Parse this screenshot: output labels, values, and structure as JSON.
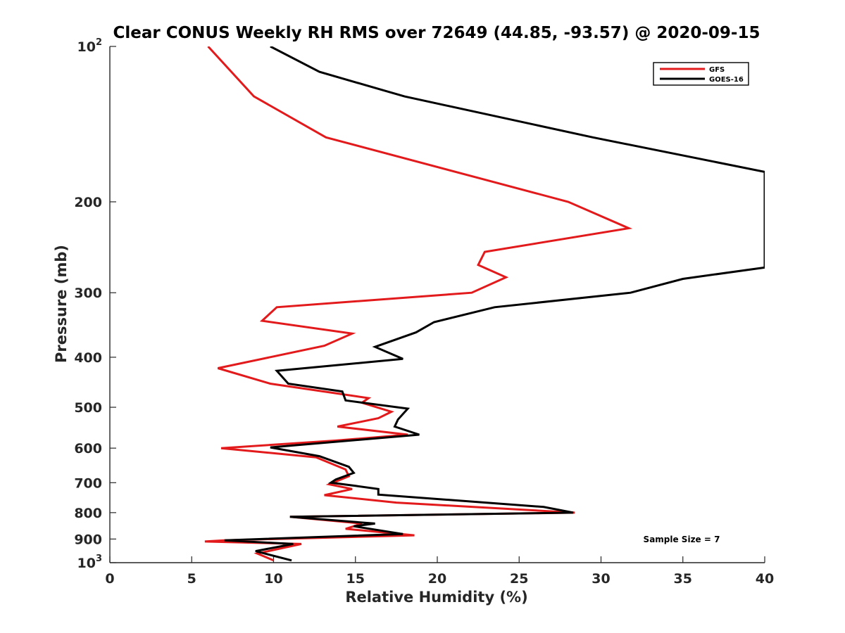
{
  "chart_data": {
    "type": "line",
    "title": "Clear CONUS Weekly RH RMS over 72649 (44.85, -93.57) @ 2020-09-15",
    "xlabel": "Relative Humidity (%)",
    "ylabel": "Pressure (mb)",
    "xlim": [
      0,
      40
    ],
    "ylim": [
      100,
      1000
    ],
    "yscale": "log",
    "y_reversed": true,
    "grid": false,
    "legend_position": "top-right",
    "x_ticks": [
      0,
      5,
      10,
      15,
      20,
      25,
      30,
      35,
      40
    ],
    "x_tick_labels": [
      "0",
      "5",
      "10",
      "15",
      "20",
      "25",
      "30",
      "35",
      "40"
    ],
    "y_ticks": [
      100,
      200,
      300,
      400,
      500,
      600,
      700,
      800,
      900,
      1000
    ],
    "y_tick_labels": [
      {
        "base": "10",
        "exp": "2"
      },
      {
        "base": "200",
        "exp": ""
      },
      {
        "base": "300",
        "exp": ""
      },
      {
        "base": "400",
        "exp": ""
      },
      {
        "base": "500",
        "exp": ""
      },
      {
        "base": "600",
        "exp": ""
      },
      {
        "base": "700",
        "exp": ""
      },
      {
        "base": "800",
        "exp": ""
      },
      {
        "base": "900",
        "exp": ""
      },
      {
        "base": "10",
        "exp": "3"
      }
    ],
    "annotation": "Sample Size = 7",
    "series": [
      {
        "name": "GFS",
        "color": "#e31a1c",
        "points": [
          [
            6.0,
            100
          ],
          [
            8.8,
            125
          ],
          [
            13.2,
            150
          ],
          [
            28.0,
            200
          ],
          [
            31.7,
            225
          ],
          [
            22.9,
            250
          ],
          [
            22.5,
            265
          ],
          [
            24.2,
            280
          ],
          [
            22.1,
            300
          ],
          [
            10.2,
            320
          ],
          [
            9.3,
            340
          ],
          [
            14.8,
            360
          ],
          [
            13.1,
            380
          ],
          [
            6.6,
            420
          ],
          [
            9.8,
            450
          ],
          [
            15.8,
            480
          ],
          [
            15.4,
            490
          ],
          [
            17.2,
            510
          ],
          [
            16.4,
            525
          ],
          [
            13.9,
            545
          ],
          [
            18.2,
            565
          ],
          [
            13.8,
            580
          ],
          [
            6.8,
            600
          ],
          [
            12.6,
            625
          ],
          [
            14.4,
            660
          ],
          [
            14.6,
            680
          ],
          [
            13.4,
            705
          ],
          [
            14.8,
            720
          ],
          [
            13.1,
            740
          ],
          [
            17.5,
            765
          ],
          [
            28.4,
            800
          ],
          [
            11.0,
            815
          ],
          [
            15.4,
            840
          ],
          [
            14.4,
            860
          ],
          [
            18.6,
            885
          ],
          [
            7.0,
            905
          ],
          [
            5.8,
            910
          ],
          [
            11.7,
            920
          ],
          [
            9.0,
            960
          ],
          [
            10.0,
            990
          ]
        ]
      },
      {
        "name": "GOES-16",
        "color": "#000000",
        "points": [
          [
            9.8,
            100
          ],
          [
            12.8,
            112
          ],
          [
            18.0,
            125
          ],
          [
            29.5,
            150
          ],
          [
            40.0,
            175
          ],
          [
            40.0,
            268
          ],
          [
            35.0,
            282
          ],
          [
            31.8,
            300
          ],
          [
            23.5,
            320
          ],
          [
            19.8,
            342
          ],
          [
            18.7,
            358
          ],
          [
            16.2,
            382
          ],
          [
            17.9,
            403
          ],
          [
            10.2,
            425
          ],
          [
            10.9,
            450
          ],
          [
            14.2,
            466
          ],
          [
            14.4,
            485
          ],
          [
            18.2,
            503
          ],
          [
            17.6,
            528
          ],
          [
            17.4,
            545
          ],
          [
            18.9,
            565
          ],
          [
            9.8,
            598
          ],
          [
            12.8,
            622
          ],
          [
            14.6,
            652
          ],
          [
            14.9,
            670
          ],
          [
            13.8,
            690
          ],
          [
            13.5,
            700
          ],
          [
            15.0,
            710
          ],
          [
            16.4,
            720
          ],
          [
            16.4,
            738
          ],
          [
            26.5,
            780
          ],
          [
            28.3,
            800
          ],
          [
            11.0,
            815
          ],
          [
            16.2,
            840
          ],
          [
            14.9,
            850
          ],
          [
            17.9,
            880
          ],
          [
            7.0,
            905
          ],
          [
            11.2,
            920
          ],
          [
            8.9,
            950
          ],
          [
            11.1,
            990
          ]
        ]
      }
    ]
  }
}
